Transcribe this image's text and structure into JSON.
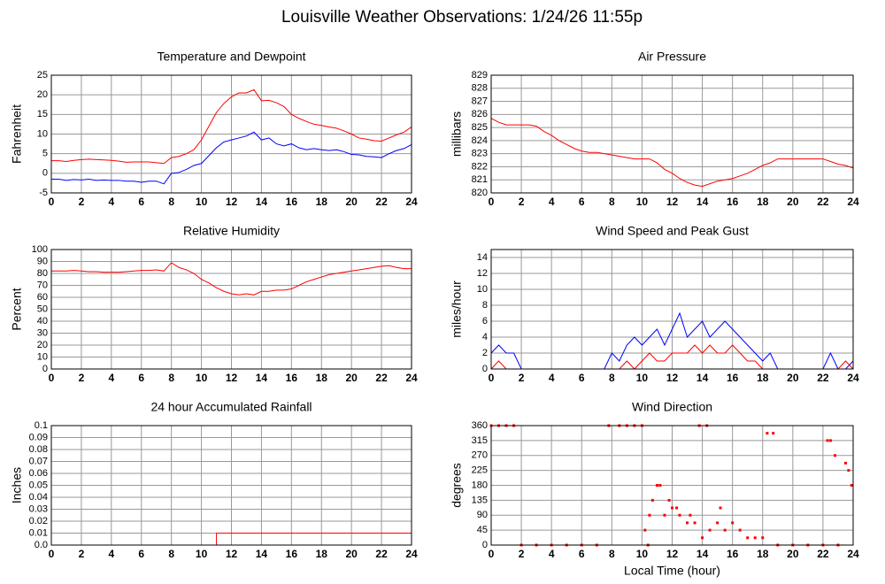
{
  "title": "Louisville Weather Observations: 1/24/26 11:55p",
  "chart_data": [
    {
      "type": "line",
      "title": "Temperature and Dewpoint",
      "ylabel": "Fahrenheit",
      "x": [
        0,
        0.5,
        1,
        1.5,
        2,
        2.5,
        3,
        3.5,
        4,
        4.5,
        5,
        5.5,
        6,
        6.5,
        7,
        7.5,
        8,
        8.5,
        9,
        9.5,
        10,
        10.5,
        11,
        11.5,
        12,
        12.5,
        13,
        13.5,
        14,
        14.5,
        15,
        15.5,
        16,
        16.5,
        17,
        17.5,
        18,
        18.5,
        19,
        19.5,
        20,
        20.5,
        21,
        21.5,
        22,
        22.5,
        23,
        23.5,
        24
      ],
      "series": [
        {
          "color": "#ff0000",
          "values": [
            3.2,
            3.2,
            3.0,
            3.3,
            3.5,
            3.6,
            3.5,
            3.4,
            3.3,
            3.1,
            2.8,
            2.9,
            2.9,
            2.9,
            2.7,
            2.5,
            4.0,
            4.3,
            5.0,
            6.0,
            8.5,
            12,
            15.5,
            17.8,
            19.5,
            20.5,
            20.5,
            21.3,
            18.5,
            18.6,
            18.0,
            17.0,
            15.0,
            14.0,
            13.2,
            12.5,
            12.2,
            11.8,
            11.5,
            10.8,
            10.0,
            9.0,
            8.7,
            8.3,
            8.2,
            9.0,
            9.8,
            10.5,
            11.8
          ]
        },
        {
          "color": "#0000ff",
          "values": [
            -1.5,
            -1.5,
            -1.8,
            -1.6,
            -1.7,
            -1.5,
            -1.8,
            -1.7,
            -1.8,
            -1.8,
            -2.0,
            -2.0,
            -2.3,
            -2.0,
            -2.0,
            -2.7,
            0.0,
            0.2,
            1.0,
            2.0,
            2.5,
            4.5,
            6.5,
            8.0,
            8.5,
            9.0,
            9.5,
            10.5,
            8.5,
            9.0,
            7.5,
            7.0,
            7.5,
            6.5,
            6.0,
            6.3,
            6.0,
            5.8,
            6.0,
            5.5,
            4.8,
            4.7,
            4.3,
            4.2,
            4.0,
            5.0,
            5.8,
            6.3,
            7.3
          ]
        }
      ],
      "xlim": [
        0,
        24
      ],
      "xticks": [
        0,
        2,
        4,
        6,
        8,
        10,
        12,
        14,
        16,
        18,
        20,
        22,
        24
      ],
      "ylim": [
        -5,
        25
      ],
      "yticks": [
        -5,
        0,
        5,
        10,
        15,
        20,
        25
      ],
      "grid": true
    },
    {
      "type": "line",
      "title": "Air Pressure",
      "ylabel": "millibars",
      "x": [
        0,
        0.5,
        1,
        1.5,
        2,
        2.5,
        3,
        3.5,
        4,
        4.5,
        5,
        5.5,
        6,
        6.5,
        7,
        7.5,
        8,
        8.5,
        9,
        9.5,
        10,
        10.5,
        11,
        11.5,
        12,
        12.5,
        13,
        13.5,
        14,
        14.5,
        15,
        15.5,
        16,
        16.5,
        17,
        17.5,
        18,
        18.5,
        19,
        19.5,
        20,
        20.5,
        21,
        21.5,
        22,
        22.5,
        23,
        23.5,
        24
      ],
      "series": [
        {
          "color": "#ff0000",
          "values": [
            825.7,
            825.4,
            825.2,
            825.2,
            825.2,
            825.2,
            825.1,
            824.7,
            824.4,
            824.0,
            823.7,
            823.4,
            823.2,
            823.1,
            823.1,
            823.0,
            822.9,
            822.8,
            822.7,
            822.6,
            822.6,
            822.6,
            822.3,
            821.8,
            821.5,
            821.1,
            820.8,
            820.6,
            820.5,
            820.7,
            820.9,
            821.0,
            821.1,
            821.3,
            821.5,
            821.8,
            822.1,
            822.3,
            822.6,
            822.6,
            822.6,
            822.6,
            822.6,
            822.6,
            822.6,
            822.4,
            822.2,
            822.1,
            821.9
          ]
        }
      ],
      "xlim": [
        0,
        24
      ],
      "xticks": [
        0,
        2,
        4,
        6,
        8,
        10,
        12,
        14,
        16,
        18,
        20,
        22,
        24
      ],
      "ylim": [
        820,
        829
      ],
      "yticks": [
        820,
        821,
        822,
        823,
        824,
        825,
        826,
        827,
        828,
        829
      ],
      "grid": true
    },
    {
      "type": "line",
      "title": "Relative Humidity",
      "ylabel": "Percent",
      "x": [
        0,
        0.5,
        1,
        1.5,
        2,
        2.5,
        3,
        3.5,
        4,
        4.5,
        5,
        5.5,
        6,
        6.5,
        7,
        7.5,
        8,
        8.5,
        9,
        9.5,
        10,
        10.5,
        11,
        11.5,
        12,
        12.5,
        13,
        13.5,
        14,
        14.5,
        15,
        15.5,
        16,
        16.5,
        17,
        17.5,
        18,
        18.5,
        19,
        19.5,
        20,
        20.5,
        21,
        21.5,
        22,
        22.5,
        23,
        23.5,
        24
      ],
      "series": [
        {
          "color": "#ff0000",
          "values": [
            82,
            82,
            82,
            82.5,
            82,
            81.5,
            81.5,
            81,
            81,
            81,
            81.5,
            82,
            82.5,
            82.5,
            83,
            82,
            89,
            85,
            83,
            80,
            75,
            72,
            68,
            65,
            63,
            62,
            63,
            62,
            65,
            65,
            66,
            66,
            67,
            70,
            73,
            75,
            77,
            79,
            80,
            81,
            82,
            83,
            84,
            85,
            86,
            86.5,
            85,
            84,
            84
          ]
        }
      ],
      "xlim": [
        0,
        24
      ],
      "xticks": [
        0,
        2,
        4,
        6,
        8,
        10,
        12,
        14,
        16,
        18,
        20,
        22,
        24
      ],
      "ylim": [
        0,
        100
      ],
      "yticks": [
        0,
        10,
        20,
        30,
        40,
        50,
        60,
        70,
        80,
        90,
        100
      ],
      "grid": true
    },
    {
      "type": "line",
      "title": "Wind Speed and Peak Gust",
      "ylabel": "miles/hour",
      "x": [
        0,
        0.5,
        1,
        1.5,
        2,
        2.5,
        3,
        3.5,
        4,
        4.5,
        5,
        5.5,
        6,
        6.5,
        7,
        7.5,
        8,
        8.5,
        9,
        9.5,
        10,
        10.5,
        11,
        11.5,
        12,
        12.5,
        13,
        13.5,
        14,
        14.5,
        15,
        15.5,
        16,
        16.5,
        17,
        17.5,
        18,
        18.5,
        19,
        19.5,
        20,
        20.5,
        21,
        21.5,
        22,
        22.5,
        23,
        23.5,
        24
      ],
      "series": [
        {
          "color": "#0000ff",
          "values": [
            2,
            3,
            2,
            2,
            0,
            0,
            0,
            0,
            0,
            0,
            0,
            0,
            0,
            0,
            0,
            0,
            2,
            1,
            3,
            4,
            3,
            4,
            5,
            3,
            5,
            7,
            4,
            5,
            6,
            4,
            5,
            6,
            5,
            4,
            3,
            2,
            1,
            2,
            0,
            0,
            0,
            0,
            0,
            0,
            0,
            2,
            0,
            0,
            1
          ]
        },
        {
          "color": "#ff0000",
          "values": [
            0,
            1,
            0,
            0,
            0,
            0,
            0,
            0,
            0,
            0,
            0,
            0,
            0,
            0,
            0,
            0,
            0,
            0,
            1,
            0,
            1,
            2,
            1,
            1,
            2,
            2,
            2,
            3,
            2,
            3,
            2,
            2,
            3,
            2,
            1,
            1,
            0,
            0,
            0,
            0,
            0,
            0,
            0,
            0,
            0,
            0,
            0,
            1,
            0
          ]
        }
      ],
      "xlim": [
        0,
        24
      ],
      "xticks": [
        0,
        2,
        4,
        6,
        8,
        10,
        12,
        14,
        16,
        18,
        20,
        22,
        24
      ],
      "ylim": [
        0,
        15
      ],
      "yticks": [
        0,
        2,
        4,
        6,
        8,
        10,
        12,
        14
      ],
      "grid": true
    },
    {
      "type": "line",
      "title": "24 hour Accumulated Rainfall",
      "ylabel": "Inches",
      "x": [
        0,
        11,
        11,
        24
      ],
      "series": [
        {
          "color": "#ff0000",
          "values": [
            0,
            0,
            0.01,
            0.01
          ]
        }
      ],
      "xlim": [
        0,
        24
      ],
      "xticks": [
        0,
        2,
        4,
        6,
        8,
        10,
        12,
        14,
        16,
        18,
        20,
        22,
        24
      ],
      "ylim": [
        0,
        0.1
      ],
      "yticks": [
        {
          "value": 0,
          "label": "0.0"
        },
        0.01,
        0.02,
        0.03,
        0.04,
        0.05,
        0.06,
        0.07,
        0.08,
        0.09,
        0.1
      ],
      "grid": true
    },
    {
      "type": "scatter",
      "title": "Wind Direction",
      "ylabel": "degrees",
      "xlabel": "Local Time (hour)",
      "x": [
        0,
        0.5,
        1,
        1.5,
        2,
        3,
        4,
        5,
        6,
        7,
        7.8,
        8.5,
        9,
        9.5,
        10,
        10.2,
        10.4,
        10.5,
        10.7,
        11,
        11.2,
        11.5,
        11.8,
        12,
        12.3,
        12.5,
        13,
        13.2,
        13.5,
        13.8,
        14,
        14.3,
        14.5,
        15,
        15.2,
        15.5,
        16,
        16.5,
        17,
        17.5,
        18,
        18.3,
        18.7,
        19,
        20,
        21,
        22,
        22.3,
        22.5,
        22.8,
        23,
        23.5,
        23.7,
        23.9
      ],
      "series": [
        {
          "color": "#ff0000",
          "values": [
            360,
            360,
            360,
            360,
            0,
            0,
            0,
            0,
            0,
            0,
            360,
            360,
            360,
            360,
            360,
            45,
            0,
            90,
            135,
            180,
            180,
            90,
            135,
            112,
            112,
            90,
            67,
            90,
            67,
            360,
            22,
            360,
            45,
            67,
            112,
            45,
            67,
            45,
            22,
            22,
            22,
            337,
            337,
            0,
            0,
            0,
            0,
            315,
            315,
            270,
            0,
            247,
            225,
            180
          ]
        }
      ],
      "xlim": [
        0,
        24
      ],
      "xticks": [
        0,
        2,
        4,
        6,
        8,
        10,
        12,
        14,
        16,
        18,
        20,
        22,
        24
      ],
      "ylim": [
        0,
        360
      ],
      "yticks": [
        0,
        45,
        90,
        135,
        180,
        225,
        270,
        315,
        360
      ],
      "grid": true
    }
  ]
}
